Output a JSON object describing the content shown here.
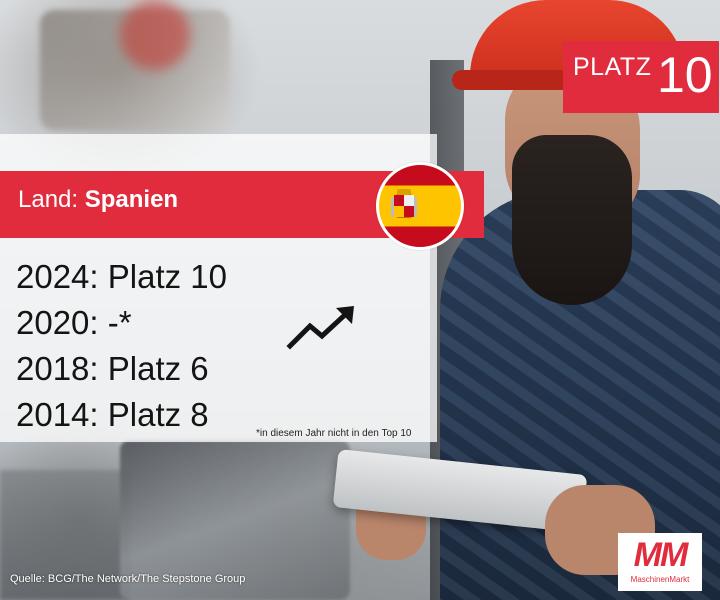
{
  "badge": {
    "label": "PLATZ",
    "number": "10"
  },
  "land": {
    "prefix": "Land:",
    "value": "Spanien"
  },
  "flag": {
    "icon": "spain-flag-icon",
    "colors": {
      "red": "#c60b1e",
      "yellow": "#ffc400"
    }
  },
  "rankings": [
    {
      "year": "2024:",
      "result": "Platz 10"
    },
    {
      "year": "2020:",
      "result": "-*"
    },
    {
      "year": "2018:",
      "result": "Platz 6"
    },
    {
      "year": "2014:",
      "result": "Platz 8"
    }
  ],
  "trend_icon": "trend-up-arrow-icon",
  "footnote": "*in diesem Jahr nicht in den Top 10",
  "source": "Quelle: BCG/The Network/The Stepstone Group",
  "logo": {
    "mark": "MM",
    "name": "MaschinenMarkt"
  },
  "colors": {
    "accent": "#e02c3d",
    "panel": "#ffffff",
    "text": "#141414"
  }
}
